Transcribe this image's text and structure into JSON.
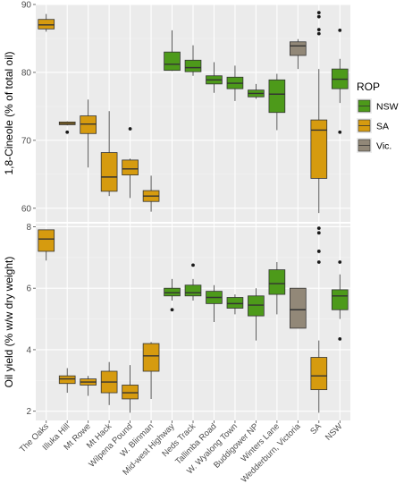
{
  "chart_data": [
    {
      "type": "boxplot",
      "panel": "top",
      "ylabel": "1,8-Cineole (% of total oil)",
      "ylim": [
        58,
        90
      ],
      "y_ticks": [
        60,
        70,
        80,
        90
      ],
      "categories": [
        "The Oaks",
        "Illuka Hill",
        "Mt Rowe",
        "Mt Hack",
        "Wilpena Pound",
        "W. Blinman",
        "Mid-west Highway",
        "Neds Track",
        "Tallimba Road",
        "W. Wyalong Town",
        "Buddigower NP",
        "Winters Lane",
        "Wedderburn, Victoria",
        "SA",
        "NSW"
      ],
      "groups": [
        "SA",
        "SA",
        "SA",
        "SA",
        "SA",
        "SA",
        "NSW",
        "NSW",
        "NSW",
        "NSW",
        "NSW",
        "NSW",
        "Vic.",
        "SA",
        "NSW"
      ],
      "boxes": [
        {
          "min": 86.0,
          "q1": 86.4,
          "median": 87.0,
          "q3": 87.8,
          "max": 88.6,
          "outliers": []
        },
        {
          "min": 72.2,
          "q1": 72.3,
          "median": 72.5,
          "q3": 72.7,
          "max": 72.8,
          "outliers": [
            71.2
          ]
        },
        {
          "min": 66.0,
          "q1": 71.0,
          "median": 72.4,
          "q3": 73.6,
          "max": 76.0,
          "outliers": []
        },
        {
          "min": 61.8,
          "q1": 62.5,
          "median": 64.6,
          "q3": 68.2,
          "max": 74.3,
          "outliers": []
        },
        {
          "min": 61.5,
          "q1": 64.9,
          "median": 65.8,
          "q3": 67.1,
          "max": 67.3,
          "outliers": [
            71.7
          ]
        },
        {
          "min": 59.5,
          "q1": 61.0,
          "median": 61.8,
          "q3": 62.6,
          "max": 64.8,
          "outliers": []
        },
        {
          "min": 80.2,
          "q1": 80.3,
          "median": 81.2,
          "q3": 83.0,
          "max": 86.2,
          "outliers": []
        },
        {
          "min": 79.5,
          "q1": 80.1,
          "median": 80.7,
          "q3": 81.8,
          "max": 84.0,
          "outliers": []
        },
        {
          "min": 77.0,
          "q1": 78.3,
          "median": 78.9,
          "q3": 79.5,
          "max": 81.5,
          "outliers": []
        },
        {
          "min": 75.8,
          "q1": 77.6,
          "median": 78.4,
          "q3": 79.3,
          "max": 81.0,
          "outliers": []
        },
        {
          "min": 76.1,
          "q1": 76.4,
          "median": 76.9,
          "q3": 77.4,
          "max": 78.3,
          "outliers": []
        },
        {
          "min": 71.5,
          "q1": 74.1,
          "median": 76.8,
          "q3": 78.9,
          "max": 79.8,
          "outliers": []
        },
        {
          "min": 80.5,
          "q1": 82.5,
          "median": 83.9,
          "q3": 84.5,
          "max": 84.9,
          "outliers": []
        },
        {
          "min": 59.3,
          "q1": 64.4,
          "median": 71.5,
          "q3": 73.0,
          "max": 80.5,
          "outliers": [
            85.7,
            86.3,
            88.2,
            88.8
          ]
        },
        {
          "min": 75.5,
          "q1": 77.6,
          "median": 79.0,
          "q3": 80.5,
          "max": 82.0,
          "outliers": [
            71.2,
            86.2
          ]
        }
      ]
    },
    {
      "type": "boxplot",
      "panel": "bottom",
      "ylabel": "Oil yield (% w/w dry weight)",
      "ylim": [
        1.7,
        8.1
      ],
      "y_ticks": [
        2,
        4,
        6,
        8
      ],
      "categories": [
        "The Oaks",
        "Illuka Hill",
        "Mt Rowe",
        "Mt Hack",
        "Wilpena Pound",
        "W. Blinman",
        "Mid-west Highway",
        "Neds Track",
        "Tallimba Road",
        "W. Wyalong Town",
        "Buddigower NP",
        "Winters Lane",
        "Wedderburn, Victoria",
        "SA",
        "NSW"
      ],
      "groups": [
        "SA",
        "SA",
        "SA",
        "SA",
        "SA",
        "SA",
        "NSW",
        "NSW",
        "NSW",
        "NSW",
        "NSW",
        "NSW",
        "Vic.",
        "SA",
        "NSW"
      ],
      "boxes": [
        {
          "min": 6.9,
          "q1": 7.2,
          "median": 7.6,
          "q3": 7.9,
          "max": 7.9,
          "outliers": []
        },
        {
          "min": 2.6,
          "q1": 2.9,
          "median": 3.05,
          "q3": 3.15,
          "max": 3.4,
          "outliers": []
        },
        {
          "min": 2.5,
          "q1": 2.85,
          "median": 2.95,
          "q3": 3.05,
          "max": 3.15,
          "outliers": []
        },
        {
          "min": 2.2,
          "q1": 2.6,
          "median": 2.95,
          "q3": 3.3,
          "max": 3.6,
          "outliers": []
        },
        {
          "min": 1.95,
          "q1": 2.4,
          "median": 2.6,
          "q3": 2.85,
          "max": 3.5,
          "outliers": []
        },
        {
          "min": 2.4,
          "q1": 3.3,
          "median": 3.8,
          "q3": 4.2,
          "max": 4.25,
          "outliers": []
        },
        {
          "min": 5.6,
          "q1": 5.75,
          "median": 5.85,
          "q3": 6.0,
          "max": 6.3,
          "outliers": [
            5.3
          ]
        },
        {
          "min": 5.6,
          "q1": 5.75,
          "median": 5.85,
          "q3": 6.1,
          "max": 6.3,
          "outliers": [
            6.75
          ]
        },
        {
          "min": 4.9,
          "q1": 5.5,
          "median": 5.7,
          "q3": 5.9,
          "max": 6.1,
          "outliers": []
        },
        {
          "min": 5.15,
          "q1": 5.35,
          "median": 5.5,
          "q3": 5.7,
          "max": 5.8,
          "outliers": []
        },
        {
          "min": 4.3,
          "q1": 5.1,
          "median": 5.45,
          "q3": 5.75,
          "max": 6.0,
          "outliers": []
        },
        {
          "min": 5.15,
          "q1": 5.8,
          "median": 6.15,
          "q3": 6.6,
          "max": 6.85,
          "outliers": []
        },
        {
          "min": 4.7,
          "q1": 4.7,
          "median": 5.3,
          "q3": 6.0,
          "max": 6.0,
          "outliers": []
        },
        {
          "min": 1.95,
          "q1": 2.7,
          "median": 3.15,
          "q3": 3.75,
          "max": 4.3,
          "outliers": [
            6.85,
            7.2,
            7.8,
            7.95
          ]
        },
        {
          "min": 5.0,
          "q1": 5.3,
          "median": 5.75,
          "q3": 5.95,
          "max": 6.45,
          "outliers": [
            4.35,
            6.85
          ]
        }
      ]
    }
  ],
  "legend": {
    "title": "ROP",
    "placement": "right",
    "items": [
      {
        "label": "NSW",
        "color": "#4d9a1a"
      },
      {
        "label": "SA",
        "color": "#d69b0f"
      },
      {
        "label": "Vic.",
        "color": "#928878"
      }
    ]
  },
  "colors": {
    "panel_bg": "#ebebeb",
    "grid_major": "#ffffff",
    "grid_minor": "#f3f3f3",
    "whisker": "#333333",
    "outlier": "#1a1a1a",
    "axis_text": "#4d4d4d",
    "label_text": "#000000"
  },
  "grid": true
}
